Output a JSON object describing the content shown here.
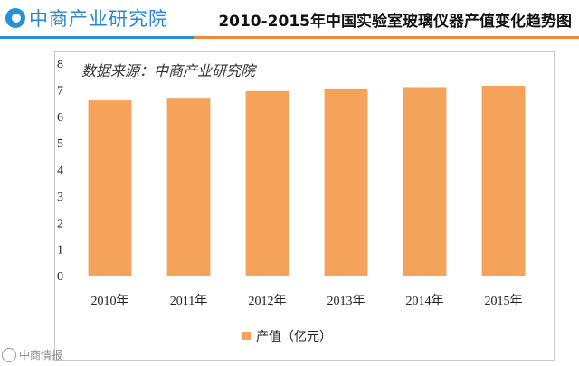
{
  "header": {
    "logo_text": "中商产业研究院",
    "title": "2010-2015年中国实验室玻璃仪器产值变化趋势图"
  },
  "watermark": "中商情报",
  "colors": {
    "bar": "#f5a35b",
    "accent_blue": "#2b8fd6",
    "accent_orange": "#f0883a"
  },
  "chart_data": {
    "type": "bar",
    "title": "2010-2015年中国实验室玻璃仪器产值变化趋势图",
    "annotation": "数据来源：中商产业研究院",
    "categories": [
      "2010年",
      "2011年",
      "2012年",
      "2013年",
      "2014年",
      "2015年"
    ],
    "series": [
      {
        "name": "产值（亿元）",
        "values": [
          6.6,
          6.7,
          6.95,
          7.05,
          7.1,
          7.15
        ]
      }
    ],
    "ylim": [
      0,
      8
    ],
    "yticks": [
      0,
      1,
      2,
      3,
      4,
      5,
      6,
      7,
      8
    ],
    "xlabel": "",
    "ylabel": "",
    "legend": "bottom-center",
    "grid": false
  }
}
